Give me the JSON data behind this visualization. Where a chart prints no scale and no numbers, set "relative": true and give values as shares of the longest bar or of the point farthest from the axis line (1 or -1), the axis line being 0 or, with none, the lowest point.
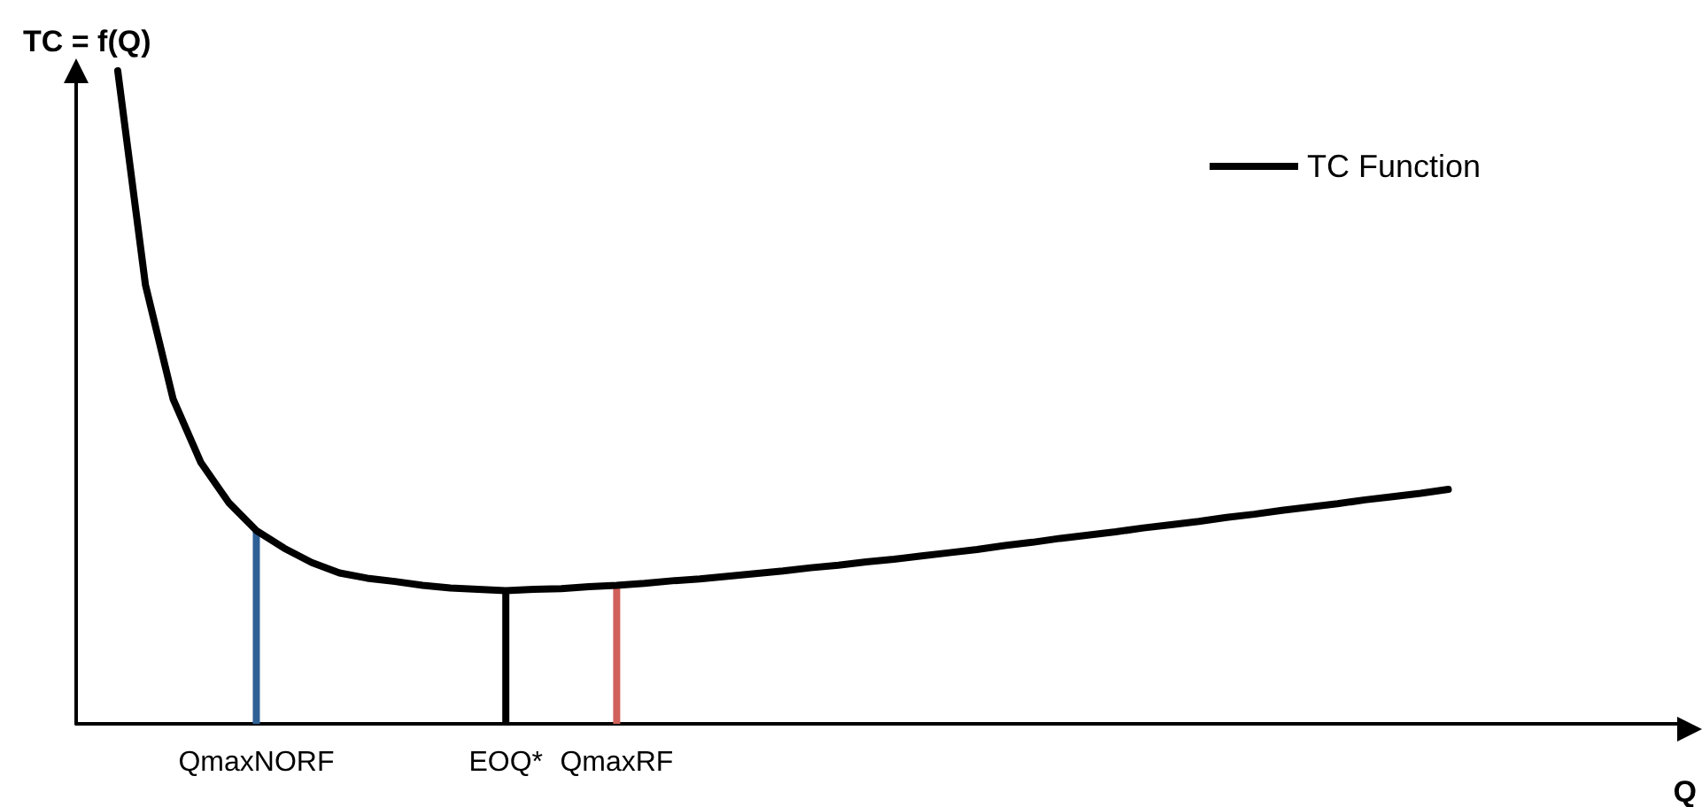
{
  "chart_data": {
    "type": "line",
    "title": "TC = f(Q)",
    "xlabel": "Q",
    "relative": true,
    "grid": false,
    "legend": "top right",
    "marker": "none",
    "line_style": "solid",
    "categories": [
      null,
      null,
      null,
      null,
      null,
      null,
      "QmaxNORF",
      null,
      null,
      null,
      null,
      null,
      null,
      null,
      null,
      "EOQ*",
      null,
      null,
      null,
      "QmaxRF",
      null,
      null,
      null,
      null,
      null,
      null,
      null,
      null,
      null,
      null,
      null,
      null,
      null,
      null,
      null,
      null,
      null,
      null,
      null,
      null,
      null,
      null,
      null,
      null,
      null,
      null,
      null,
      null,
      null,
      null,
      null,
      null,
      null,
      null,
      null,
      null,
      null,
      null
    ],
    "series": [
      {
        "name": "TC Function",
        "color": "#000000",
        "values": [
          null,
          1,
          0.672,
          0.497,
          0.4,
          0.339,
          0.296,
          0.269,
          0.247,
          0.231,
          0.223,
          0.218,
          0.212,
          0.208,
          0.206,
          0.204,
          0.206,
          0.207,
          0.21,
          0.212,
          0.215,
          0.219,
          0.222,
          0.226,
          0.23,
          0.234,
          0.239,
          0.243,
          0.248,
          0.252,
          0.257,
          0.262,
          0.267,
          0.273,
          0.278,
          0.284,
          0.289,
          0.294,
          0.3,
          0.305,
          0.31,
          0.316,
          0.321,
          0.327,
          0.332,
          0.337,
          0.343,
          0.348,
          0.353,
          0.359,
          null,
          null,
          null,
          null,
          null,
          null,
          null,
          null
        ]
      },
      {
        "type": "bar",
        "colors": [
          null,
          null,
          null,
          null,
          null,
          null,
          "#2e6096",
          null,
          null,
          null,
          null,
          null,
          null,
          null,
          null,
          "#000000",
          null,
          null,
          null,
          "#d0605a",
          null,
          null,
          null,
          null,
          null,
          null,
          null,
          null,
          null,
          null,
          null,
          null,
          null,
          null,
          null,
          null,
          null,
          null,
          null,
          null,
          null,
          null,
          null,
          null,
          null,
          null,
          null,
          null,
          null,
          null,
          null,
          null,
          null,
          null,
          null,
          null,
          null,
          null
        ],
        "values": [
          null,
          null,
          null,
          null,
          null,
          null,
          0.296,
          null,
          null,
          null,
          null,
          null,
          null,
          null,
          null,
          0.204,
          null,
          null,
          null,
          0.212,
          null,
          null,
          null,
          null,
          null,
          null,
          null,
          null,
          null,
          null,
          null,
          null,
          null,
          null,
          null,
          null,
          null,
          null,
          null,
          null,
          null,
          null,
          null,
          null,
          null,
          null,
          null,
          null,
          null,
          null,
          null,
          null,
          null,
          null,
          null,
          null,
          null,
          null
        ]
      }
    ]
  }
}
